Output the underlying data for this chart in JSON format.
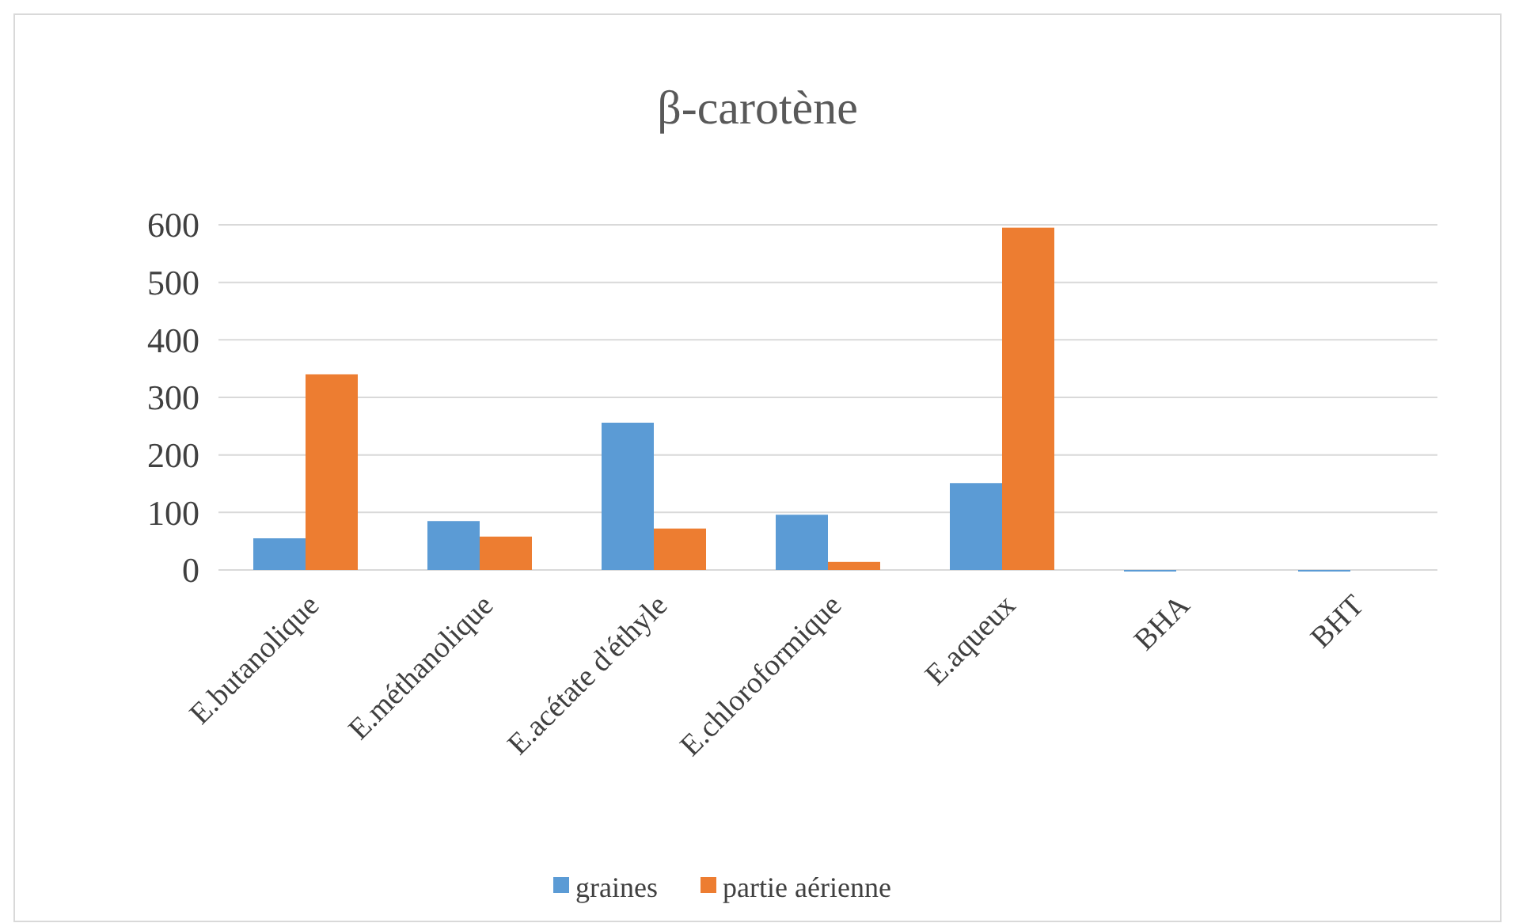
{
  "chart_data": {
    "type": "bar",
    "title": "β-carotène",
    "categories": [
      "E.butanolique",
      "E.méthanolique",
      "E.acétate d'éthyle",
      "E.chloroformique",
      "E.aqueux",
      "BHA",
      "BHT"
    ],
    "series": [
      {
        "name": "graines",
        "color": "#5b9bd5",
        "values": [
          55,
          85,
          256,
          96,
          151,
          0,
          0
        ]
      },
      {
        "name": "partie aérienne",
        "color": "#ed7d31",
        "values": [
          340,
          58,
          72,
          14,
          595,
          null,
          null
        ]
      }
    ],
    "ylim": [
      0,
      600
    ],
    "yticks": [
      0,
      100,
      200,
      300,
      400,
      500,
      600
    ],
    "grid": "y",
    "legend": "bottom"
  }
}
